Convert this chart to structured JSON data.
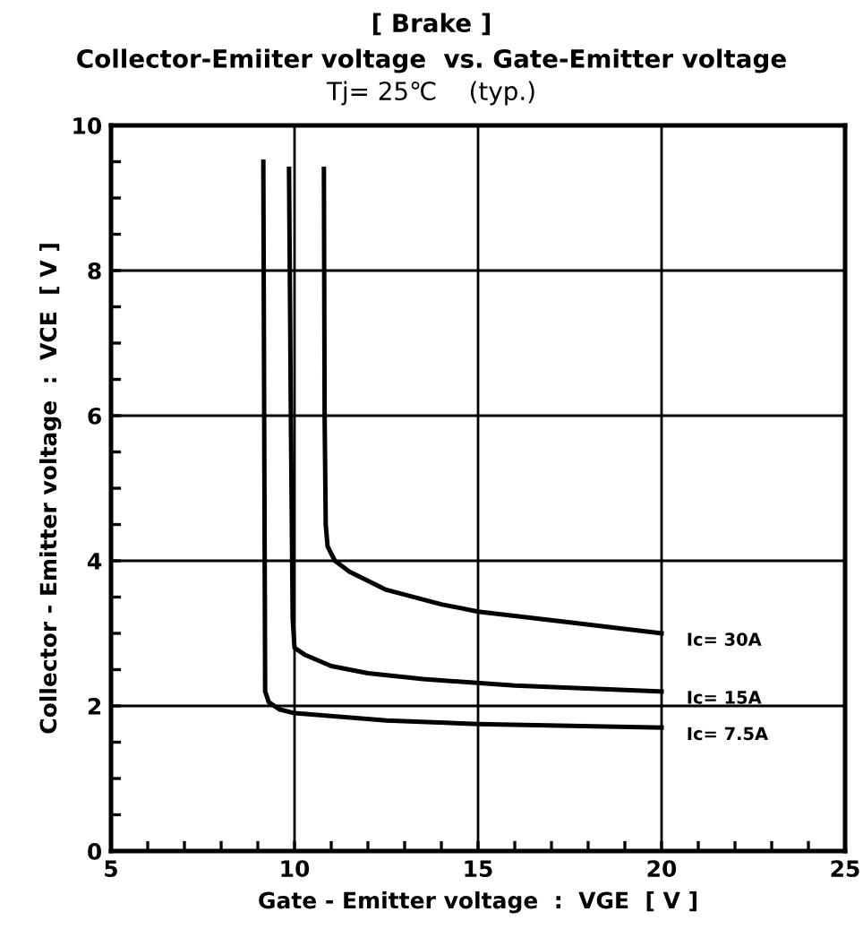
{
  "chart_data": {
    "type": "line",
    "title": "[ Brake ]",
    "subtitle": "Collector-Emiiter voltage  vs. Gate-Emitter voltage",
    "annotations": [
      "Tj= 25℃    (typ.)"
    ],
    "xlabel": "Gate - Emitter voltage  :  VGE  [ V ]",
    "ylabel": "Collector - Emitter voltage  :  VCE  [ V ]",
    "xlim": [
      5,
      25
    ],
    "ylim": [
      0,
      10
    ],
    "xticks": [
      5,
      {
        "value": 6,
        "label": null
      },
      {
        "value": 7,
        "label": null
      },
      {
        "value": 8,
        "label": null
      },
      {
        "value": 9,
        "label": null
      },
      10,
      {
        "value": 11,
        "label": null
      },
      {
        "value": 12,
        "label": null
      },
      {
        "value": 13,
        "label": null
      },
      {
        "value": 14,
        "label": null
      },
      15,
      {
        "value": 16,
        "label": null
      },
      {
        "value": 17,
        "label": null
      },
      {
        "value": 18,
        "label": null
      },
      {
        "value": 19,
        "label": null
      },
      20,
      {
        "value": 21,
        "label": null
      },
      {
        "value": 22,
        "label": null
      },
      {
        "value": 23,
        "label": null
      },
      {
        "value": 24,
        "label": null
      },
      25
    ],
    "yticks": [
      0,
      {
        "value": 0.5,
        "label": null
      },
      {
        "value": 1,
        "label": null
      },
      {
        "value": 1.5,
        "label": null
      },
      2,
      {
        "value": 2.5,
        "label": null
      },
      {
        "value": 3,
        "label": null
      },
      {
        "value": 3.5,
        "label": null
      },
      4,
      {
        "value": 4.5,
        "label": null
      },
      {
        "value": 5,
        "label": null
      },
      {
        "value": 5.5,
        "label": null
      },
      6,
      {
        "value": 6.5,
        "label": null
      },
      {
        "value": 7,
        "label": null
      },
      {
        "value": 7.5,
        "label": null
      },
      8,
      {
        "value": 8.5,
        "label": null
      },
      {
        "value": 9,
        "label": null
      },
      {
        "value": 9.5,
        "label": null
      },
      10
    ],
    "grid": true,
    "legend": false,
    "marker": "none",
    "line_style": "solid",
    "series": [
      {
        "name": "Ic= 30A",
        "color": "#000000",
        "x": [
          10.8,
          10.82,
          10.85,
          10.9,
          11.1,
          11.5,
          12.5,
          14,
          15,
          17.5,
          20
        ],
        "values": [
          9.4,
          6,
          4.5,
          4.2,
          4.0,
          3.85,
          3.6,
          3.4,
          3.3,
          3.15,
          3.0
        ]
      },
      {
        "name": "Ic= 15A",
        "color": "#000000",
        "x": [
          9.85,
          9.9,
          9.95,
          10.0,
          10.3,
          11,
          12,
          13.5,
          16,
          20
        ],
        "values": [
          9.4,
          6,
          3.2,
          2.8,
          2.7,
          2.55,
          2.45,
          2.37,
          2.28,
          2.2
        ]
      },
      {
        "name": "Ic= 7.5A",
        "color": "#000000",
        "x": [
          9.15,
          9.18,
          9.2,
          9.3,
          9.6,
          10,
          12.5,
          15,
          20
        ],
        "values": [
          9.5,
          5,
          2.2,
          2.05,
          1.95,
          1.9,
          1.8,
          1.75,
          1.7
        ]
      }
    ]
  }
}
